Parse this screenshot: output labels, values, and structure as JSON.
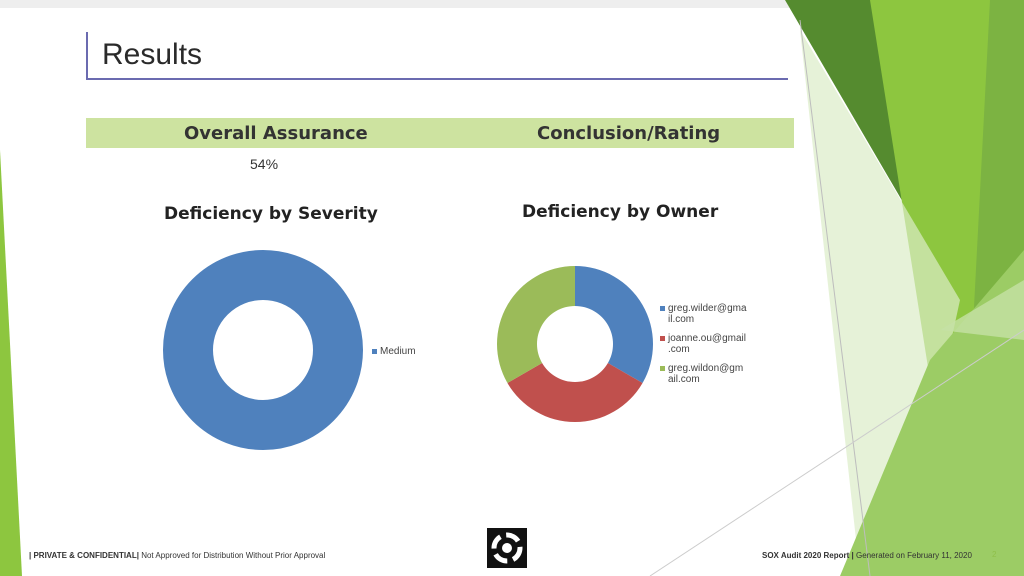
{
  "header": {
    "title": "Results"
  },
  "summary": {
    "overall_assurance_label": "Overall Assurance",
    "conclusion_label": "Conclusion/Rating",
    "overall_assurance_value": "54%"
  },
  "colors": {
    "blue": "#4f81bd",
    "red": "#c0504d",
    "green": "#9bbb59",
    "accent_green": "#8dc63f",
    "title_line": "#6b6bb0"
  },
  "chart_data": [
    {
      "type": "pie",
      "title": "Deficiency by Severity",
      "categories": [
        "Medium"
      ],
      "values": [
        1
      ],
      "colors": [
        "#4f81bd"
      ],
      "donut": true,
      "legend": "right"
    },
    {
      "type": "pie",
      "title": "Deficiency by Owner",
      "categories": [
        "greg.wilder@gmail.com",
        "joanne.ou@gmail.com",
        "greg.wildon@gmail.com"
      ],
      "legend_lines": [
        [
          "greg.wilder@gma",
          "il.com"
        ],
        [
          "joanne.ou@gmail",
          ".com"
        ],
        [
          "greg.wildon@gm",
          "ail.com"
        ]
      ],
      "values": [
        1,
        1,
        1
      ],
      "colors": [
        "#4f81bd",
        "#c0504d",
        "#9bbb59"
      ],
      "donut": true,
      "legend": "right"
    }
  ],
  "footer": {
    "left_bold": "| PRIVATE & CONFIDENTIAL|",
    "left_text": " Not Approved for Distribution Without Prior Approval",
    "right_bold": "SOX Audit 2020 Report |",
    "right_text": "  Generated on February 11, 2020",
    "page_number": "2"
  }
}
